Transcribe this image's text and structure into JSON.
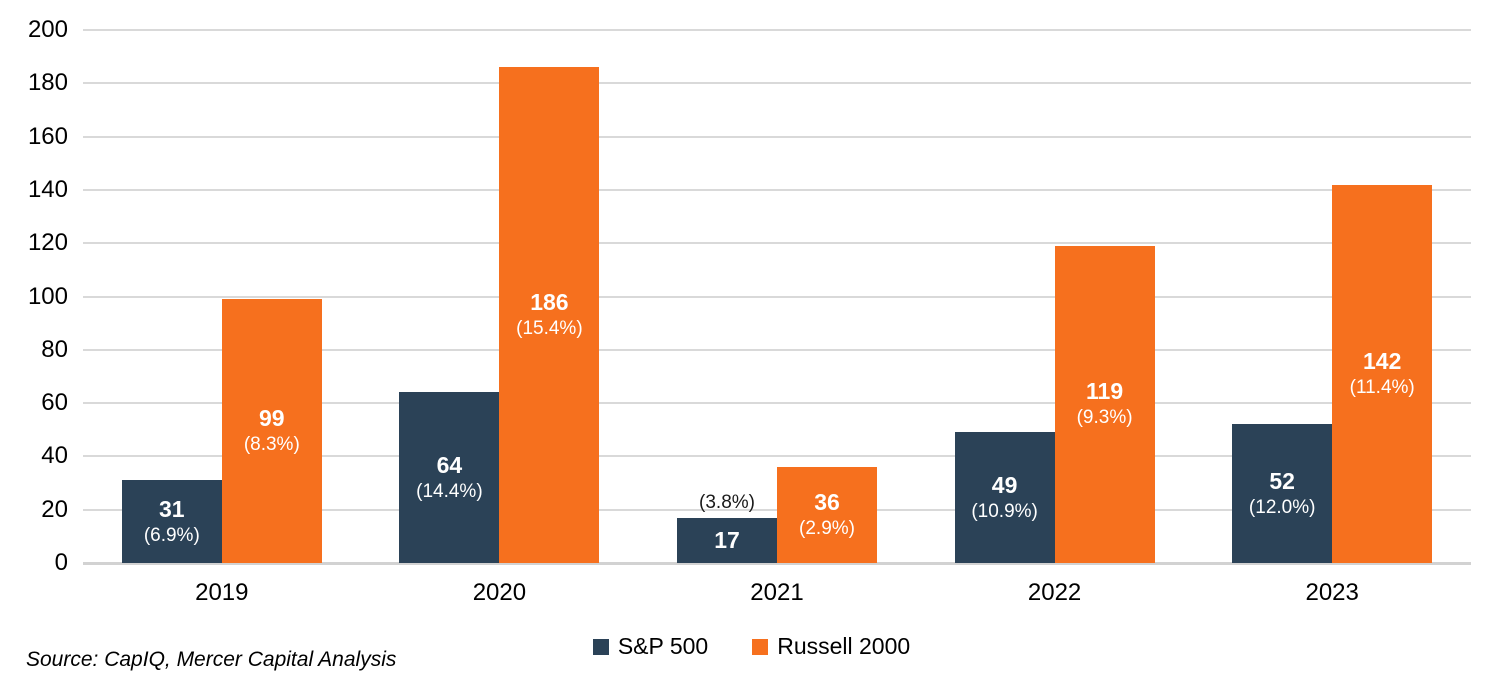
{
  "chart_data": {
    "type": "bar",
    "title": "",
    "xlabel": "",
    "ylabel": "",
    "categories": [
      "2019",
      "2020",
      "2021",
      "2022",
      "2023"
    ],
    "series": [
      {
        "name": "S&P 500",
        "color": "#2B4257",
        "values": [
          31,
          64,
          17,
          49,
          52
        ],
        "value_labels": [
          "31",
          "64",
          "17",
          "49",
          "52"
        ],
        "pct_labels": [
          "(6.9%)",
          "(14.4%)",
          "(3.8%)",
          "(10.9%)",
          "(12.0%)"
        ],
        "pct_outside": [
          false,
          false,
          true,
          false,
          false
        ]
      },
      {
        "name": "Russell 2000",
        "color": "#F6701E",
        "values": [
          99,
          186,
          36,
          119,
          142
        ],
        "value_labels": [
          "99",
          "186",
          "36",
          "119",
          "142"
        ],
        "pct_labels": [
          "(8.3%)",
          "(15.4%)",
          "(2.9%)",
          "(9.3%)",
          "(11.4%)"
        ],
        "pct_outside": [
          false,
          false,
          false,
          false,
          false
        ]
      }
    ],
    "ylim": [
      0,
      200
    ],
    "ytick_step": 20,
    "yticks": [
      0,
      20,
      40,
      60,
      80,
      100,
      120,
      140,
      160,
      180,
      200
    ],
    "grid": true,
    "legend_position": "bottom-center"
  },
  "colors": {
    "grid": "#d9d9d9",
    "baseline": "#d2d2d2",
    "axis_text": "#000000",
    "bar_label_text": "#ffffff",
    "outside_label_text": "#1a1a1a"
  },
  "source_note": "Source: CapIQ, Mercer Capital Analysis"
}
